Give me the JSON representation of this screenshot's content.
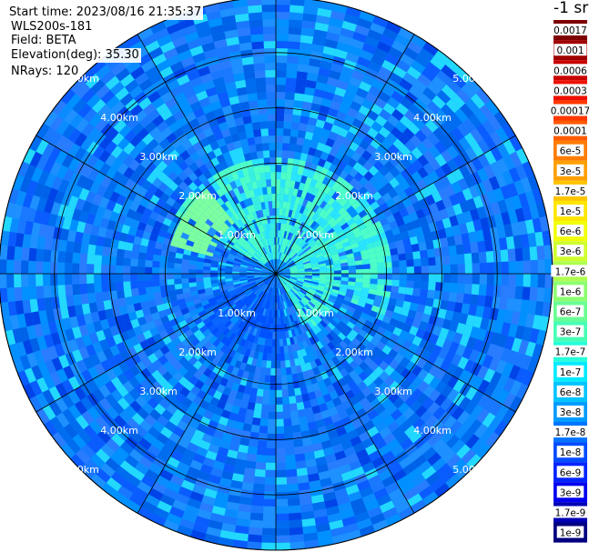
{
  "header": {
    "start_time": "Start time: 2023/08/16 21:35:37",
    "radar": "WLS200s-181",
    "field": "Field: BETA",
    "elevation": "Elevation(deg): 35.30",
    "nrays": "NRays: 120"
  },
  "colorbar": {
    "unit": "-1 sr",
    "labels": [
      "0.0017",
      "0.001",
      "0.0006",
      "0.0003",
      "0.00017",
      "0.0001",
      "6e-5",
      "3e-5",
      "1.7e-5",
      "1e-5",
      "6e-6",
      "3e-6",
      "1.7e-6",
      "1e-6",
      "6e-7",
      "3e-7",
      "1.7e-7",
      "1e-7",
      "6e-8",
      "3e-8",
      "1.7e-8",
      "1e-8",
      "6e-9",
      "3e-9",
      "1.7e-9",
      "1e-9"
    ],
    "colors": [
      "#7f0000",
      "#a00000",
      "#c80000",
      "#ee1000",
      "#ff3800",
      "#ff5a00",
      "#ff7c00",
      "#ffa000",
      "#ffc400",
      "#ffe600",
      "#f2ff0c",
      "#d0ff2e",
      "#aeff50",
      "#8cff72",
      "#6aff94",
      "#48ffb6",
      "#26ffd8",
      "#04eaff",
      "#00c4ff",
      "#009cff",
      "#0074ff",
      "#004cff",
      "#0024ff",
      "#0000ee",
      "#0000b4",
      "#000080"
    ]
  },
  "chart_data": {
    "type": "heatmap",
    "title": "",
    "projection": "polar PPI",
    "field": "BETA",
    "elevation_deg": 35.3,
    "n_rays": 120,
    "range_rings_km": [
      1.0,
      2.0,
      3.0,
      4.0,
      5.0
    ],
    "ring_labels": [
      "1.00km",
      "2.00km",
      "3.00km",
      "4.00km",
      "5.00km"
    ],
    "azimuth_spokes_deg": [
      0,
      30,
      60,
      90,
      120,
      150,
      180,
      210,
      240,
      270,
      300,
      330
    ],
    "max_range_km": 5.0,
    "grid": true,
    "legend": "right",
    "dominant_values": [
      {
        "region": "background (most of disc)",
        "value": "3e-8"
      },
      {
        "region": "near-field plume (0-2 km, north/east)",
        "value": "1.7e-7"
      },
      {
        "region": "north-west patch near 2 km",
        "value": "1.7e-6"
      },
      {
        "region": "south-west wedge (0-1.5 km)",
        "value": "1.7e-8"
      }
    ]
  }
}
